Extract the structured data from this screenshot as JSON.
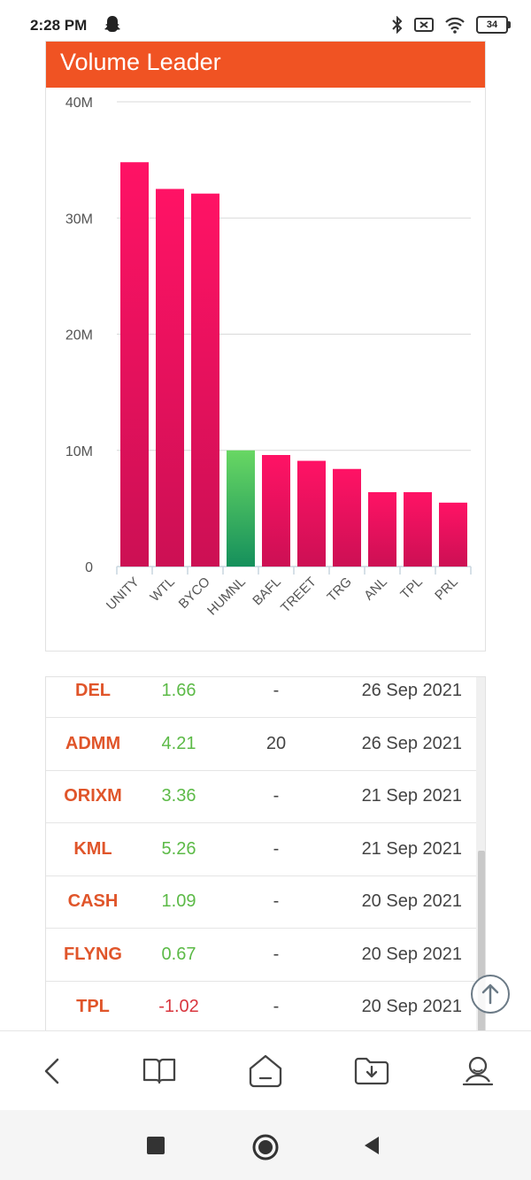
{
  "status_bar": {
    "time": "2:28 PM",
    "battery": "34"
  },
  "chart": {
    "title": "Volume Leader",
    "highlight_color": "#5fd06a",
    "bar_color": "#f0105a",
    "header_color": "#f05323"
  },
  "chart_data": {
    "type": "bar",
    "categories": [
      "UNITY",
      "WTL",
      "BYCO",
      "HUMNL",
      "BAFL",
      "TREET",
      "TRG",
      "ANL",
      "TPL",
      "PRL"
    ],
    "values": [
      34.8,
      32.5,
      32.1,
      10.0,
      9.6,
      9.1,
      8.4,
      6.4,
      6.4,
      5.5
    ],
    "highlighted_category": "HUMNL",
    "y_ticks": [
      "0",
      "10M",
      "20M",
      "30M",
      "40M"
    ],
    "ylim": [
      0,
      40
    ],
    "grid": true,
    "title": "Volume Leader",
    "xlabel": "",
    "ylabel": ""
  },
  "table": {
    "rows": [
      {
        "symbol": "DEL",
        "change": "1.66",
        "trend": "pos",
        "dividend": "-",
        "date": "26 Sep 2021"
      },
      {
        "symbol": "ADMM",
        "change": "4.21",
        "trend": "pos",
        "dividend": "20",
        "date": "26 Sep 2021"
      },
      {
        "symbol": "ORIXM",
        "change": "3.36",
        "trend": "pos",
        "dividend": "-",
        "date": "21 Sep 2021"
      },
      {
        "symbol": "KML",
        "change": "5.26",
        "trend": "pos",
        "dividend": "-",
        "date": "21 Sep 2021"
      },
      {
        "symbol": "CASH",
        "change": "1.09",
        "trend": "pos",
        "dividend": "-",
        "date": "20 Sep 2021"
      },
      {
        "symbol": "FLYNG",
        "change": "0.67",
        "trend": "pos",
        "dividend": "-",
        "date": "20 Sep 2021"
      },
      {
        "symbol": "TPL",
        "change": "-1.02",
        "trend": "neg",
        "dividend": "-",
        "date": "20 Sep 2021"
      }
    ]
  },
  "icons": {
    "scroll_top": "arrow-up-circle-icon",
    "nav": [
      "back-icon",
      "book-icon",
      "home-icon",
      "download-folder-icon",
      "profile-icon"
    ],
    "system": [
      "recents-square-icon",
      "home-circle-icon",
      "back-triangle-icon"
    ]
  }
}
